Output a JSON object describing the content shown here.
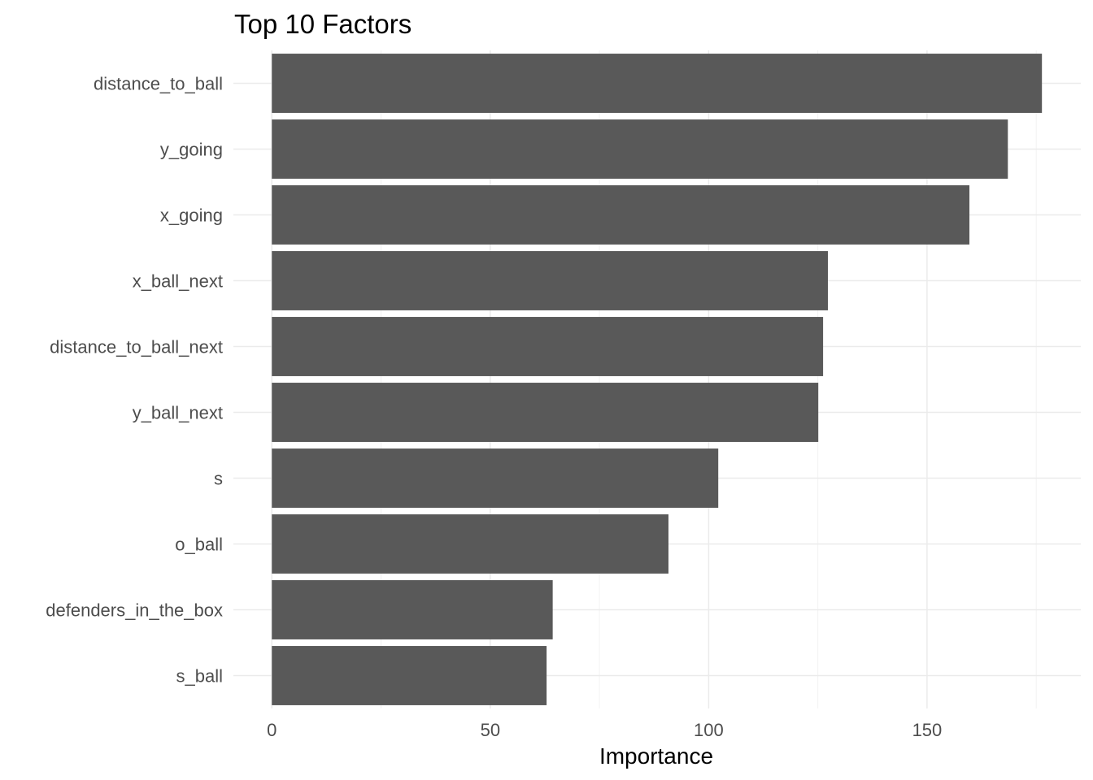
{
  "chart_data": {
    "type": "bar",
    "orientation": "horizontal",
    "title": "Top 10 Factors",
    "xlabel": "Importance",
    "ylabel": "",
    "categories": [
      "distance_to_ball",
      "y_going",
      "x_going",
      "x_ball_next",
      "distance_to_ball_next",
      "y_ball_next",
      "s",
      "o_ball",
      "defenders_in_the_box",
      "s_ball"
    ],
    "values": [
      176.3,
      168.5,
      159.7,
      127.3,
      126.2,
      125.1,
      102.2,
      90.8,
      64.3,
      62.9
    ],
    "xticks": [
      0,
      50,
      100,
      150
    ],
    "xlim": [
      -8.8,
      185.2
    ],
    "grid": true,
    "bar_color": "#595959",
    "legend": "none"
  }
}
